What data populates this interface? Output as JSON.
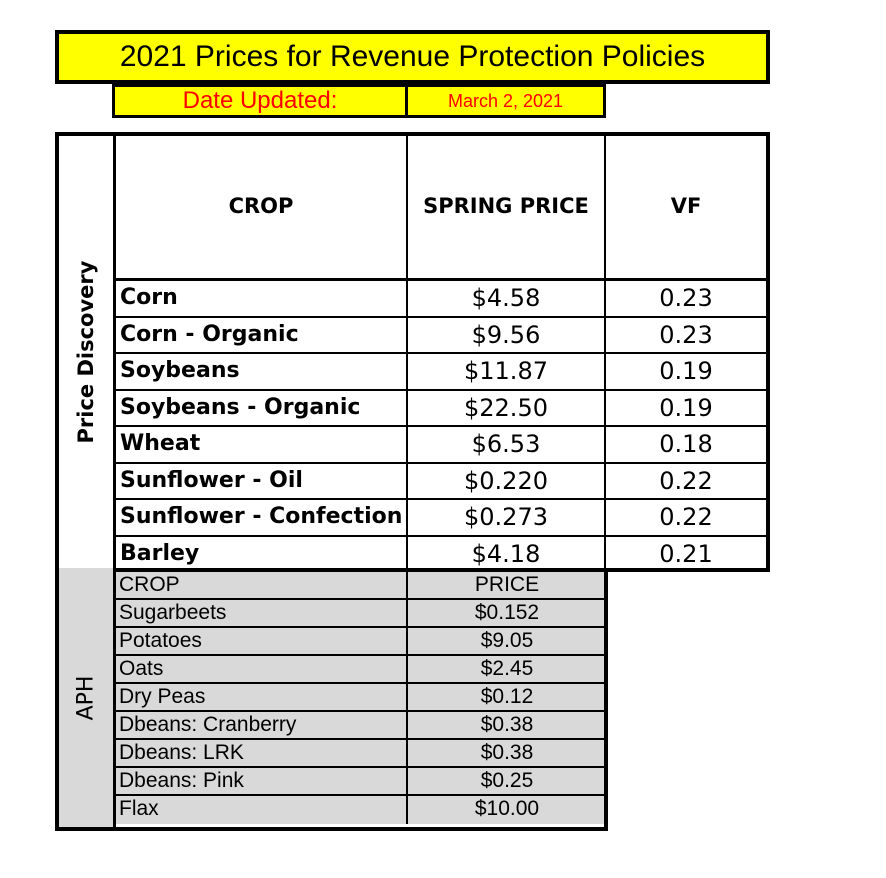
{
  "header": {
    "title": "2021 Prices for Revenue Protection Policies",
    "date_label": "Date Updated:",
    "date_value": "March 2, 2021"
  },
  "price_discovery": {
    "section_label": "Price Discovery",
    "columns": [
      "CROP",
      "SPRING PRICE",
      "VF"
    ],
    "rows": [
      {
        "crop": "Corn",
        "price": "$4.58",
        "vf": "0.23"
      },
      {
        "crop": "Corn - Organic",
        "price": "$9.56",
        "vf": "0.23"
      },
      {
        "crop": "Soybeans",
        "price": "$11.87",
        "vf": "0.19"
      },
      {
        "crop": "Soybeans - Organic",
        "price": "$22.50",
        "vf": "0.19"
      },
      {
        "crop": "Wheat",
        "price": "$6.53",
        "vf": "0.18"
      },
      {
        "crop": "Sunflower - Oil",
        "price": "$0.220",
        "vf": "0.22"
      },
      {
        "crop": "Sunflower - Confection",
        "price": "$0.273",
        "vf": "0.22"
      },
      {
        "crop": "Barley",
        "price": "$4.18",
        "vf": "0.21"
      }
    ]
  },
  "aph": {
    "section_label": "APH",
    "columns": [
      "CROP",
      "PRICE"
    ],
    "rows": [
      {
        "crop": "Sugarbeets",
        "price": "$0.152"
      },
      {
        "crop": "Potatoes",
        "price": "$9.05"
      },
      {
        "crop": "Oats",
        "price": "$2.45"
      },
      {
        "crop": "Dry Peas",
        "price": "$0.12"
      },
      {
        "crop": "Dbeans: Cranberry",
        "price": "$0.38"
      },
      {
        "crop": "Dbeans: LRK",
        "price": "$0.38"
      },
      {
        "crop": "Dbeans: Pink",
        "price": "$0.25"
      },
      {
        "crop": "Flax",
        "price": "$10.00"
      }
    ]
  }
}
